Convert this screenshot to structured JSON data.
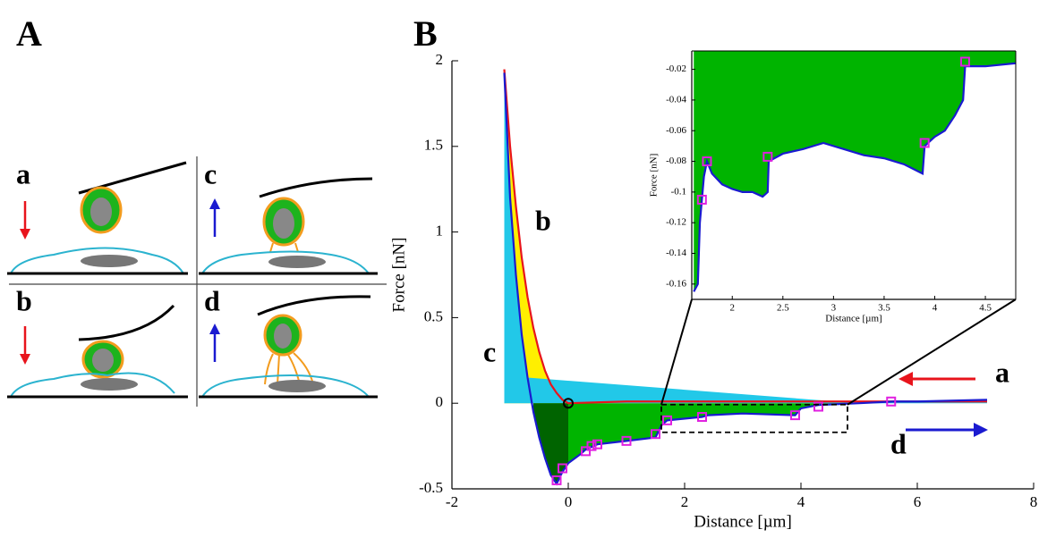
{
  "panels": {
    "labels": [
      "A",
      "B"
    ],
    "diagram_steps": [
      "a",
      "b",
      "c",
      "d"
    ]
  },
  "chart_data": [
    {
      "type": "line",
      "xlabel": "Distance [µm]",
      "ylabel": "Force [nN]",
      "xlim": [
        -2,
        8
      ],
      "xticks": [
        -2,
        0,
        2,
        4,
        6,
        8
      ],
      "ylim": [
        -0.5,
        2
      ],
      "yticks": [
        -0.5,
        0,
        0.5,
        1,
        1.5,
        2
      ],
      "annotations": [
        "a",
        "b",
        "c",
        "d"
      ],
      "series": [
        {
          "color": "#e8141c",
          "x": [
            -1.1,
            -1.0,
            -0.9,
            -0.8,
            -0.7,
            -0.6,
            -0.5,
            -0.4,
            -0.3,
            -0.2,
            -0.1,
            0,
            1,
            2,
            3,
            4,
            5,
            6,
            7,
            7.2
          ],
          "values": [
            1.95,
            1.5,
            1.15,
            0.85,
            0.62,
            0.44,
            0.3,
            0.19,
            0.11,
            0.06,
            0.02,
            0,
            0.01,
            0.01,
            0.01,
            0.01,
            0.01,
            0.01,
            0.01,
            0.01
          ]
        },
        {
          "color": "#1a1ad0",
          "x": [
            -1.1,
            -1.0,
            -0.9,
            -0.8,
            -0.7,
            -0.6,
            -0.5,
            -0.4,
            -0.3,
            -0.2,
            -0.1,
            0,
            0.2,
            0.3,
            0.5,
            1,
            1.5,
            1.6,
            1.7,
            2.3,
            2.4,
            3,
            3.9,
            4.0,
            4.3,
            5,
            5.6,
            6,
            7.2
          ],
          "values": [
            1.93,
            1.2,
            0.75,
            0.4,
            0.15,
            -0.05,
            -0.2,
            -0.32,
            -0.42,
            -0.47,
            -0.4,
            -0.35,
            -0.3,
            -0.27,
            -0.24,
            -0.22,
            -0.2,
            -0.13,
            -0.1,
            -0.08,
            -0.07,
            -0.06,
            -0.07,
            -0.03,
            -0.01,
            0,
            0.01,
            0.01,
            0.02
          ]
        }
      ],
      "markers": {
        "color": "#e020e0",
        "x": [
          -0.2,
          -0.1,
          0.3,
          0.4,
          0.5,
          1,
          1.5,
          1.7,
          2.3,
          3.9,
          4.3,
          5.55
        ],
        "values": [
          -0.45,
          -0.38,
          -0.28,
          -0.25,
          -0.24,
          -0.22,
          -0.18,
          -0.1,
          -0.08,
          -0.07,
          -0.02,
          0.01
        ]
      }
    },
    {
      "type": "line",
      "xlabel": "Distance [µm]",
      "ylabel": "Force [nN]",
      "xlim": [
        1.6,
        4.8
      ],
      "xticks": [
        2,
        2.5,
        3,
        3.5,
        4,
        4.5
      ],
      "ylim": [
        -0.17,
        -0.008
      ],
      "yticks": [
        -0.16,
        -0.14,
        -0.12,
        -0.1,
        -0.08,
        -0.06,
        -0.04,
        -0.02
      ],
      "series": [
        {
          "color": "#1a1ad0",
          "x": [
            1.62,
            1.66,
            1.68,
            1.7,
            1.72,
            1.75,
            1.8,
            1.9,
            2.0,
            2.1,
            2.2,
            2.3,
            2.35,
            2.36,
            2.5,
            2.7,
            2.9,
            3.1,
            3.3,
            3.5,
            3.7,
            3.88,
            3.9,
            4.0,
            4.1,
            4.2,
            4.28,
            4.3,
            4.5,
            4.8
          ],
          "values": [
            -0.165,
            -0.16,
            -0.12,
            -0.105,
            -0.09,
            -0.08,
            -0.088,
            -0.095,
            -0.098,
            -0.1,
            -0.1,
            -0.103,
            -0.1,
            -0.08,
            -0.075,
            -0.072,
            -0.068,
            -0.072,
            -0.076,
            -0.078,
            -0.082,
            -0.088,
            -0.07,
            -0.064,
            -0.06,
            -0.05,
            -0.04,
            -0.018,
            -0.018,
            -0.016
          ]
        }
      ],
      "markers": {
        "color": "#e020e0",
        "x": [
          1.7,
          1.75,
          2.35,
          3.9,
          4.3
        ],
        "values": [
          -0.105,
          -0.08,
          -0.077,
          -0.068,
          -0.015
        ]
      }
    }
  ]
}
